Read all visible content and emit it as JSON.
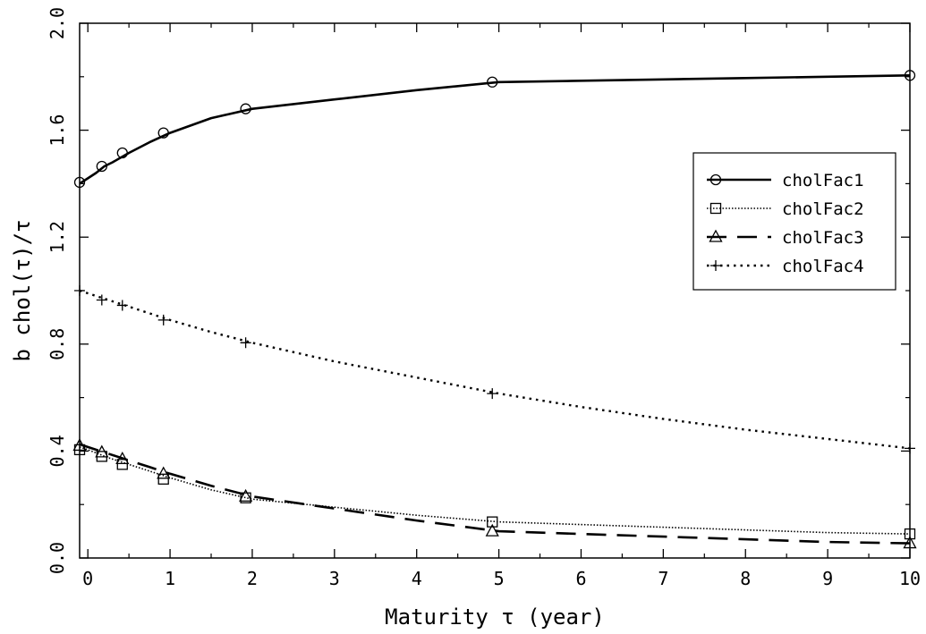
{
  "chart_data": {
    "type": "line",
    "xlabel": "Maturity τ (year)",
    "ylabel": "b chol(τ)/τ",
    "xlim": [
      -0.1,
      10
    ],
    "ylim": [
      0,
      2.0
    ],
    "xticks": [
      0,
      1,
      2,
      3,
      4,
      5,
      6,
      7,
      8,
      9,
      10
    ],
    "xtick_labels": [
      "0",
      "1",
      "2",
      "3",
      "4",
      "5",
      "6",
      "7",
      "8",
      "9",
      "10"
    ],
    "yticks": [
      0,
      0.4,
      0.8,
      1.2,
      1.6,
      2.0
    ],
    "ytick_labels": [
      "0.0",
      "0.4",
      "0.8",
      "1.2",
      "1.6",
      "2.0"
    ],
    "grid": false,
    "legend_position": "right",
    "series": [
      {
        "name": "cholFac1",
        "line_style": "solid",
        "marker": "circle",
        "curve": {
          "x": [
            -0.1,
            0,
            0.1,
            0.2,
            0.3,
            0.5,
            0.75,
            1,
            1.5,
            2,
            3,
            4,
            5,
            6,
            7,
            8,
            9,
            10
          ],
          "y": [
            1.4,
            1.42,
            1.44,
            1.465,
            1.48,
            1.515,
            1.555,
            1.59,
            1.645,
            1.68,
            1.715,
            1.75,
            1.78,
            1.785,
            1.79,
            1.795,
            1.8,
            1.805
          ]
        },
        "markers": {
          "x": [
            -0.1,
            0.17,
            0.42,
            0.92,
            1.92,
            4.92,
            10
          ],
          "y": [
            1.405,
            1.465,
            1.515,
            1.59,
            1.68,
            1.78,
            1.805
          ]
        }
      },
      {
        "name": "cholFac2",
        "line_style": "fine-dotted",
        "marker": "square",
        "curve": {
          "x": [
            -0.1,
            0,
            0.25,
            0.5,
            0.75,
            1,
            1.5,
            2,
            3,
            4,
            5,
            6,
            7,
            8,
            9,
            10
          ],
          "y": [
            0.415,
            0.405,
            0.375,
            0.35,
            0.325,
            0.3,
            0.255,
            0.22,
            0.19,
            0.16,
            0.135,
            0.125,
            0.115,
            0.105,
            0.095,
            0.09
          ]
        },
        "markers": {
          "x": [
            -0.1,
            0.17,
            0.42,
            0.92,
            1.92,
            4.92,
            10
          ],
          "y": [
            0.405,
            0.38,
            0.35,
            0.295,
            0.225,
            0.135,
            0.09
          ]
        }
      },
      {
        "name": "cholFac3",
        "line_style": "long-dash",
        "marker": "triangle",
        "curve": {
          "x": [
            -0.1,
            0,
            0.25,
            0.5,
            0.75,
            1,
            1.5,
            2,
            3,
            4,
            5,
            6,
            7,
            8,
            9,
            10
          ],
          "y": [
            0.425,
            0.415,
            0.39,
            0.365,
            0.34,
            0.315,
            0.27,
            0.23,
            0.185,
            0.14,
            0.1,
            0.09,
            0.08,
            0.07,
            0.06,
            0.055
          ]
        },
        "markers": {
          "x": [
            -0.1,
            0.17,
            0.42,
            0.92,
            1.92,
            4.92,
            10
          ],
          "y": [
            0.42,
            0.395,
            0.37,
            0.315,
            0.23,
            0.1,
            0.055
          ]
        }
      },
      {
        "name": "cholFac4",
        "line_style": "dotted",
        "marker": "plus",
        "curve": {
          "x": [
            -0.1,
            0,
            0.25,
            0.5,
            0.75,
            1,
            1.5,
            2,
            3,
            4,
            5,
            6,
            7,
            8,
            9,
            10
          ],
          "y": [
            1.0,
            0.99,
            0.965,
            0.94,
            0.915,
            0.89,
            0.845,
            0.805,
            0.735,
            0.675,
            0.615,
            0.565,
            0.52,
            0.48,
            0.445,
            0.41
          ]
        },
        "markers": {
          "x": [
            -0.1,
            0.17,
            0.42,
            0.92,
            1.92,
            4.92,
            10
          ],
          "y": [
            1.0,
            0.965,
            0.945,
            0.89,
            0.805,
            0.615,
            0.41
          ]
        }
      }
    ]
  }
}
